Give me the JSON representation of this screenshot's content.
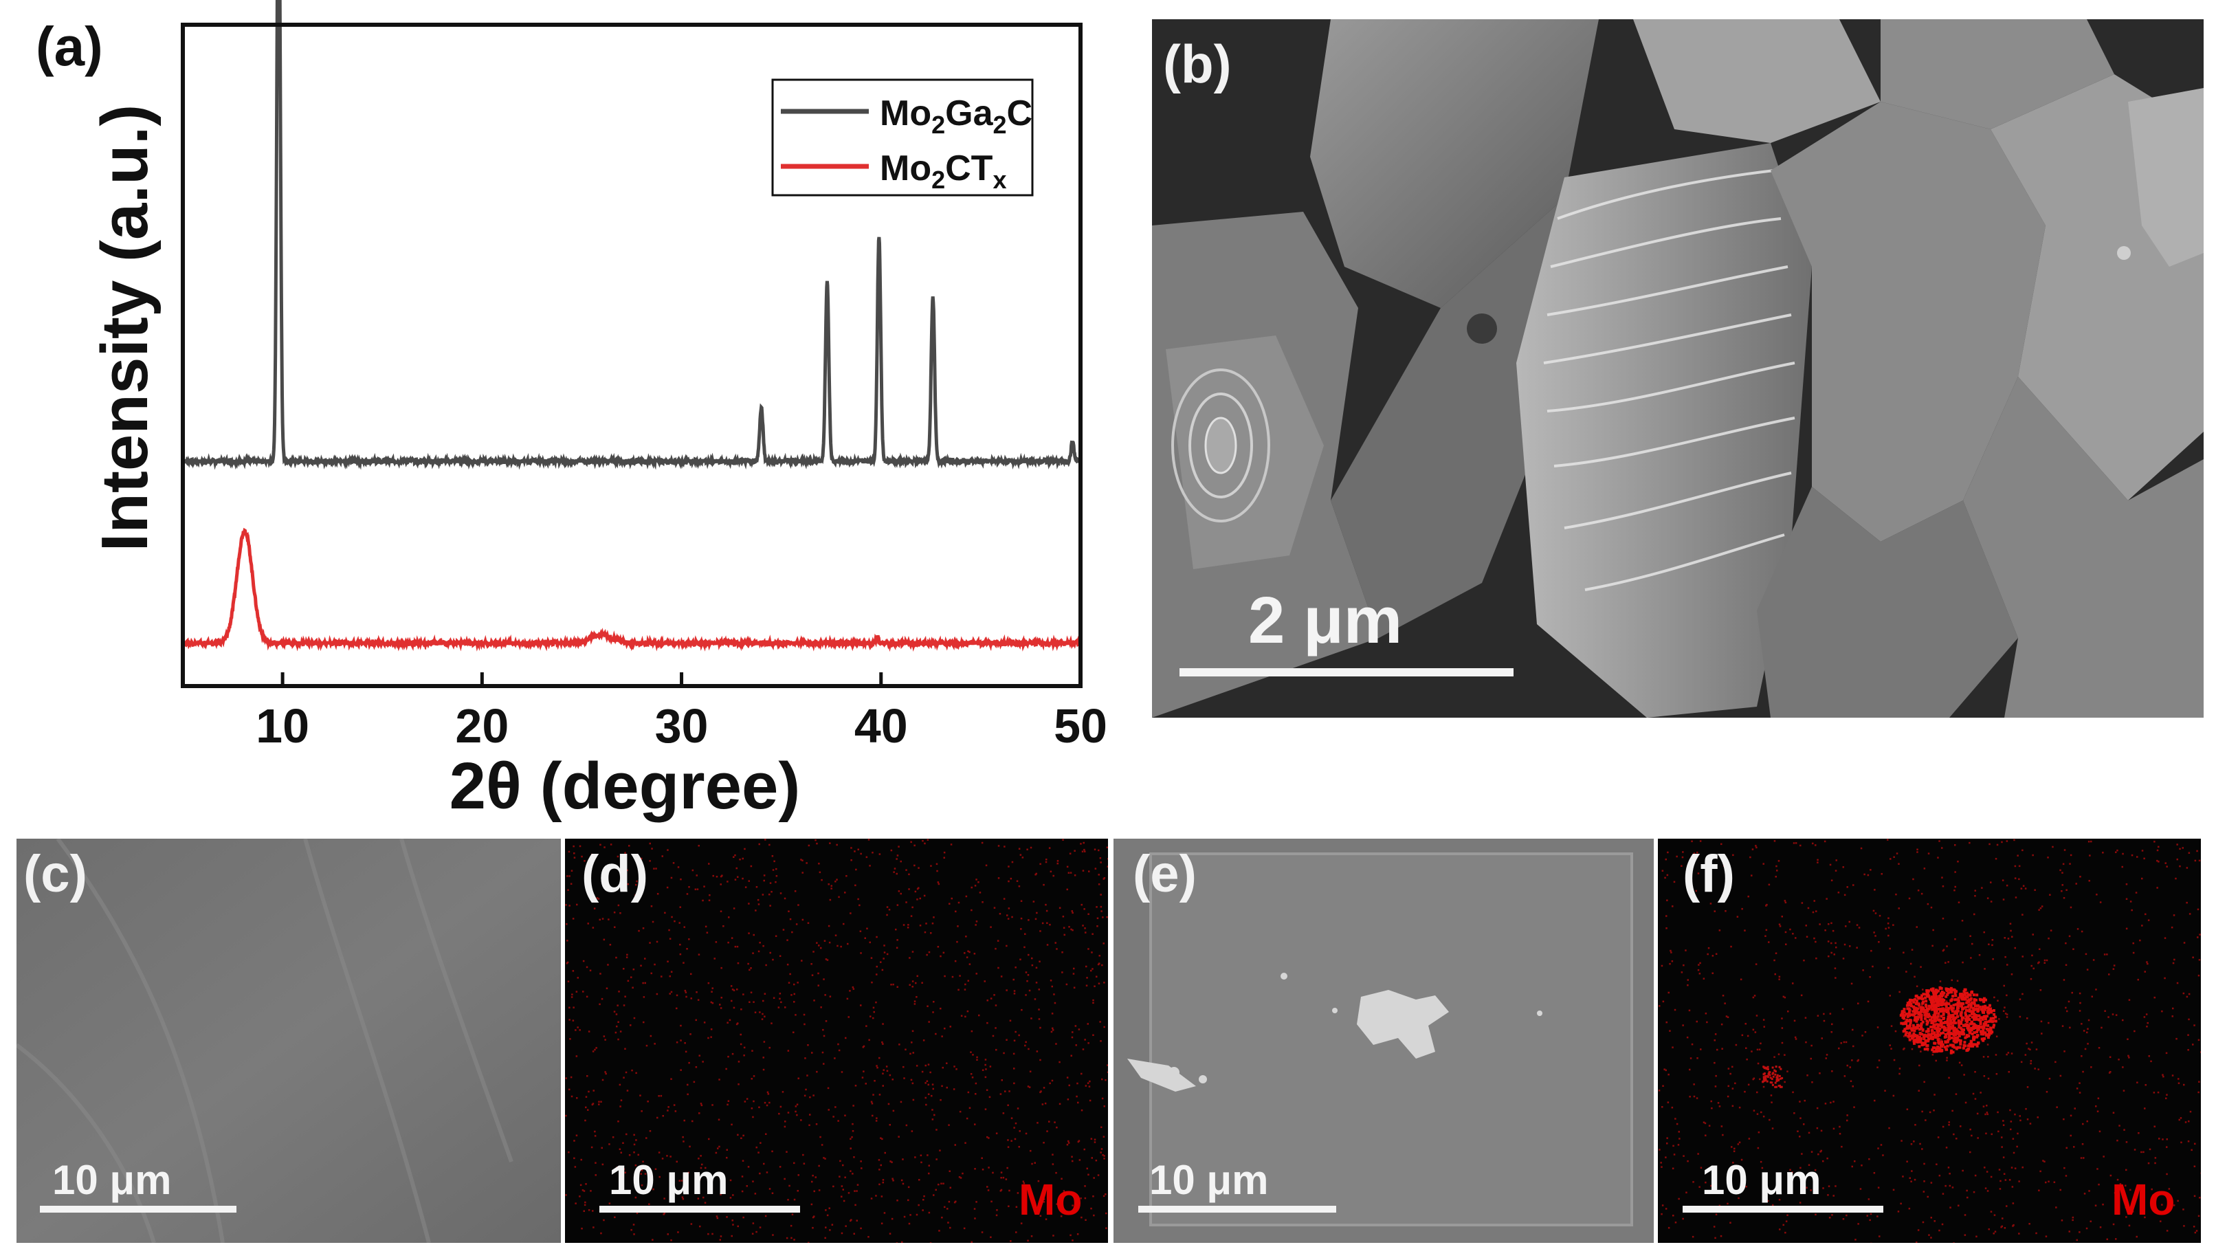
{
  "panels": {
    "a": {
      "label": "(a)"
    },
    "b": {
      "label": "(b)",
      "scalebar": "2 μm"
    },
    "c": {
      "label": "(c)",
      "scalebar": "10 μm"
    },
    "d": {
      "label": "(d)",
      "scalebar": "10 μm",
      "element": "Mo"
    },
    "e": {
      "label": "(e)",
      "scalebar": "10 μm"
    },
    "f": {
      "label": "(f)",
      "scalebar": "10 μm",
      "element": "Mo"
    }
  },
  "chart_data": {
    "type": "line",
    "title": "",
    "xlabel": "2θ (degree)",
    "ylabel": "Intensity (a.u.)",
    "xlim": [
      5,
      50
    ],
    "xticks": [
      10,
      20,
      30,
      40,
      50
    ],
    "yticks_shown": false,
    "legend_position": "top-right",
    "series": [
      {
        "name": "Mo2Ga2C",
        "legend_html": "Mo<tspan baseline-shift='sub' font-size='70%'>2</tspan>Ga<tspan baseline-shift='sub' font-size='70%'>2</tspan>C",
        "color": "#4a4a4a",
        "baseline": 0.34,
        "peaks": [
          {
            "x": 9.8,
            "height": 0.96,
            "width": 0.12
          },
          {
            "x": 34.0,
            "height": 0.08,
            "width": 0.12
          },
          {
            "x": 37.3,
            "height": 0.27,
            "width": 0.12
          },
          {
            "x": 39.9,
            "height": 0.34,
            "width": 0.12
          },
          {
            "x": 42.6,
            "height": 0.25,
            "width": 0.12
          },
          {
            "x": 49.6,
            "height": 0.03,
            "width": 0.1
          }
        ]
      },
      {
        "name": "Mo2CTx",
        "color": "#e03030",
        "baseline": 0.065,
        "peaks": [
          {
            "x": 8.1,
            "height": 0.17,
            "width": 0.55
          },
          {
            "x": 26.0,
            "height": 0.012,
            "width": 0.8
          },
          {
            "x": 39.8,
            "height": 0.01,
            "width": 0.1
          }
        ]
      }
    ]
  }
}
